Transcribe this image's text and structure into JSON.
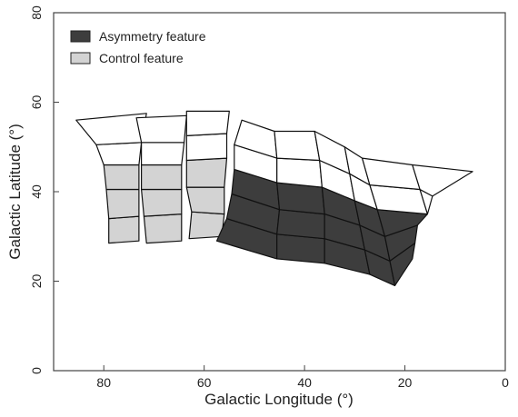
{
  "chart_data": {
    "type": "map",
    "xlabel": "Galactic Longitude (°)",
    "ylabel": "Galactic Latitude (°)",
    "xlim": [
      90,
      0
    ],
    "ylim": [
      0,
      80
    ],
    "x_reversed": true,
    "xticks": [
      80,
      60,
      40,
      20,
      0
    ],
    "yticks": [
      0,
      20,
      40,
      60,
      80
    ],
    "grid": false,
    "legend": {
      "placement": "top-left",
      "entries": [
        {
          "label": "Asymmetry feature",
          "color": "#3d3d3d"
        },
        {
          "label": "Control feature",
          "color": "#d3d3d3"
        }
      ]
    },
    "colors": {
      "asymmetry": "#3d3d3d",
      "control": "#d3d3d3",
      "other": "#ffffff"
    },
    "strips": [
      {
        "rows": [
          {
            "corners": [
              [
                79,
                28.5
              ],
              [
                73,
                29
              ],
              [
                73,
                34.5
              ],
              [
                79,
                34
              ]
            ],
            "class": "control"
          },
          {
            "corners": [
              [
                79,
                34
              ],
              [
                73,
                34.5
              ],
              [
                73,
                40.5
              ],
              [
                79.5,
                40.5
              ]
            ],
            "class": "control"
          },
          {
            "corners": [
              [
                79.5,
                40.5
              ],
              [
                73,
                40.5
              ],
              [
                73,
                46
              ],
              [
                80,
                46
              ]
            ],
            "class": "control"
          },
          {
            "corners": [
              [
                80,
                46
              ],
              [
                73,
                46
              ],
              [
                72.5,
                51
              ],
              [
                81.5,
                50.5
              ]
            ],
            "class": "other"
          },
          {
            "corners": [
              [
                81.5,
                50.5
              ],
              [
                72.5,
                51
              ],
              [
                71.5,
                57.5
              ],
              [
                85.5,
                56
              ]
            ],
            "class": "other"
          }
        ]
      },
      {
        "rows": [
          {
            "corners": [
              [
                71.5,
                28.5
              ],
              [
                64.5,
                29
              ],
              [
                64.5,
                35
              ],
              [
                72,
                34.5
              ]
            ],
            "class": "control"
          },
          {
            "corners": [
              [
                72,
                34.5
              ],
              [
                64.5,
                35
              ],
              [
                64.5,
                40.5
              ],
              [
                72.5,
                40.5
              ]
            ],
            "class": "control"
          },
          {
            "corners": [
              [
                72.5,
                40.5
              ],
              [
                64.5,
                40.5
              ],
              [
                64.5,
                46
              ],
              [
                72.5,
                46
              ]
            ],
            "class": "control"
          },
          {
            "corners": [
              [
                72.5,
                46
              ],
              [
                64.5,
                46
              ],
              [
                64,
                51
              ],
              [
                72.5,
                51
              ]
            ],
            "class": "other"
          },
          {
            "corners": [
              [
                72.5,
                51
              ],
              [
                64,
                51
              ],
              [
                63.5,
                57
              ],
              [
                73.5,
                56.5
              ]
            ],
            "class": "other"
          }
        ]
      },
      {
        "rows": [
          {
            "corners": [
              [
                63,
                29.5
              ],
              [
                56.5,
                30
              ],
              [
                56,
                35
              ],
              [
                62.5,
                35.5
              ]
            ],
            "class": "control"
          },
          {
            "corners": [
              [
                62.5,
                35.5
              ],
              [
                56,
                35
              ],
              [
                56,
                41
              ],
              [
                63.5,
                41
              ]
            ],
            "class": "control"
          },
          {
            "corners": [
              [
                63.5,
                41
              ],
              [
                56,
                41
              ],
              [
                55.5,
                47.5
              ],
              [
                63.5,
                47
              ]
            ],
            "class": "control"
          },
          {
            "corners": [
              [
                63.5,
                47
              ],
              [
                55.5,
                47.5
              ],
              [
                55.5,
                53
              ],
              [
                63.5,
                52.5
              ]
            ],
            "class": "other"
          },
          {
            "corners": [
              [
                63.5,
                52.5
              ],
              [
                55.5,
                53
              ],
              [
                55,
                58
              ],
              [
                63.5,
                58
              ]
            ],
            "class": "other"
          }
        ]
      },
      {
        "rows": [
          {
            "corners": [
              [
                57.5,
                29
              ],
              [
                45.5,
                25
              ],
              [
                45.5,
                30.5
              ],
              [
                55.5,
                34
              ]
            ],
            "class": "asymmetry"
          },
          {
            "corners": [
              [
                55.5,
                34
              ],
              [
                45.5,
                30.5
              ],
              [
                45,
                36
              ],
              [
                54.5,
                39.5
              ]
            ],
            "class": "asymmetry"
          },
          {
            "corners": [
              [
                54.5,
                39.5
              ],
              [
                45,
                36
              ],
              [
                45.5,
                42
              ],
              [
                54,
                45
              ]
            ],
            "class": "asymmetry"
          },
          {
            "corners": [
              [
                54,
                45
              ],
              [
                45.5,
                42
              ],
              [
                45.5,
                47.5
              ],
              [
                54,
                50.5
              ]
            ],
            "class": "other"
          },
          {
            "corners": [
              [
                54,
                50.5
              ],
              [
                45.5,
                47.5
              ],
              [
                46,
                53.5
              ],
              [
                52.5,
                56
              ]
            ],
            "class": "other"
          }
        ]
      },
      {
        "rows": [
          {
            "corners": [
              [
                45.5,
                25
              ],
              [
                36,
                24
              ],
              [
                36,
                29.5
              ],
              [
                45.5,
                30.5
              ]
            ],
            "class": "asymmetry"
          },
          {
            "corners": [
              [
                45.5,
                30.5
              ],
              [
                36,
                29.5
              ],
              [
                36,
                35
              ],
              [
                45,
                36
              ]
            ],
            "class": "asymmetry"
          },
          {
            "corners": [
              [
                45,
                36
              ],
              [
                36,
                35
              ],
              [
                36.5,
                41
              ],
              [
                45.5,
                42
              ]
            ],
            "class": "asymmetry"
          },
          {
            "corners": [
              [
                45.5,
                42
              ],
              [
                36.5,
                41
              ],
              [
                37,
                47
              ],
              [
                45.5,
                47.5
              ]
            ],
            "class": "other"
          },
          {
            "corners": [
              [
                45.5,
                47.5
              ],
              [
                37,
                47
              ],
              [
                38,
                53.5
              ],
              [
                46,
                53.5
              ]
            ],
            "class": "other"
          }
        ]
      },
      {
        "rows": [
          {
            "corners": [
              [
                36,
                24
              ],
              [
                27,
                21.5
              ],
              [
                28,
                27
              ],
              [
                36,
                29.5
              ]
            ],
            "class": "asymmetry"
          },
          {
            "corners": [
              [
                36,
                29.5
              ],
              [
                28,
                27
              ],
              [
                29,
                32.5
              ],
              [
                36,
                35
              ]
            ],
            "class": "asymmetry"
          },
          {
            "corners": [
              [
                36,
                35
              ],
              [
                29,
                32.5
              ],
              [
                30,
                38
              ],
              [
                36.5,
                41
              ]
            ],
            "class": "asymmetry"
          },
          {
            "corners": [
              [
                36.5,
                41
              ],
              [
                30,
                38
              ],
              [
                31,
                44
              ],
              [
                37,
                47
              ]
            ],
            "class": "other"
          },
          {
            "corners": [
              [
                37,
                47
              ],
              [
                31,
                44
              ],
              [
                32,
                50
              ],
              [
                38,
                53.5
              ]
            ],
            "class": "other"
          }
        ]
      },
      {
        "rows": [
          {
            "corners": [
              [
                27,
                21.5
              ],
              [
                22,
                19
              ],
              [
                23,
                24.5
              ],
              [
                28,
                27
              ]
            ],
            "class": "asymmetry"
          },
          {
            "corners": [
              [
                28,
                27
              ],
              [
                23,
                24.5
              ],
              [
                24,
                30
              ],
              [
                29,
                32.5
              ]
            ],
            "class": "asymmetry"
          },
          {
            "corners": [
              [
                29,
                32.5
              ],
              [
                24,
                30
              ],
              [
                25.5,
                36
              ],
              [
                30,
                38
              ]
            ],
            "class": "asymmetry"
          },
          {
            "corners": [
              [
                30,
                38
              ],
              [
                25.5,
                36
              ],
              [
                27,
                41.5
              ],
              [
                31,
                44
              ]
            ],
            "class": "other"
          },
          {
            "corners": [
              [
                31,
                44
              ],
              [
                27,
                41.5
              ],
              [
                28.5,
                47.5
              ],
              [
                32,
                50
              ]
            ],
            "class": "other"
          }
        ]
      },
      {
        "rows": [
          {
            "corners": [
              [
                22,
                19
              ],
              [
                18.5,
                25
              ],
              [
                18,
                28.5
              ],
              [
                23,
                24.5
              ]
            ],
            "class": "asymmetry"
          },
          {
            "corners": [
              [
                23,
                24.5
              ],
              [
                18,
                28.5
              ],
              [
                17.5,
                32.5
              ],
              [
                24,
                30
              ]
            ],
            "class": "asymmetry"
          },
          {
            "corners": [
              [
                24,
                30
              ],
              [
                17.5,
                32.5
              ],
              [
                15.5,
                35
              ],
              [
                25.5,
                36
              ]
            ],
            "class": "asymmetry"
          },
          {
            "corners": [
              [
                25.5,
                36
              ],
              [
                15.5,
                35
              ],
              [
                17,
                40.5
              ],
              [
                27,
                41.5
              ]
            ],
            "class": "other"
          },
          {
            "corners": [
              [
                27,
                41.5
              ],
              [
                17,
                40.5
              ],
              [
                18.5,
                46
              ],
              [
                28.5,
                47.5
              ]
            ],
            "class": "other"
          }
        ]
      },
      {
        "rows": [
          {
            "corners": [
              [
                15.5,
                35
              ],
              [
                15.5,
                35
              ],
              [
                14.5,
                39
              ],
              [
                17,
                40.5
              ]
            ],
            "class": "other"
          },
          {
            "corners": [
              [
                17,
                40.5
              ],
              [
                14.5,
                39
              ],
              [
                6.5,
                44.5
              ],
              [
                18.5,
                46
              ]
            ],
            "class": "other"
          }
        ]
      }
    ]
  }
}
